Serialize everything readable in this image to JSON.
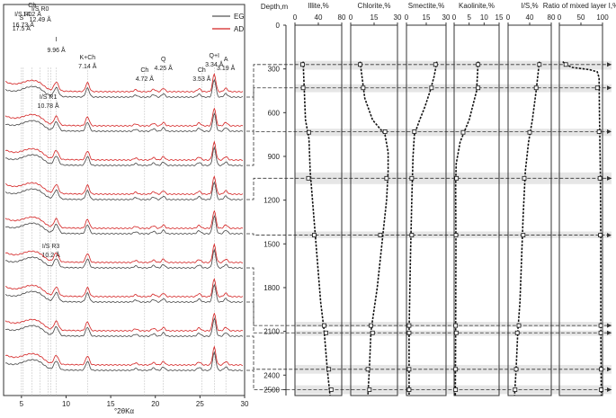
{
  "chart_data": [
    {
      "type": "line",
      "subtype": "xrd-diffractogram-stack",
      "xlabel": "°2θKα",
      "x_ticks": [
        5,
        10,
        15,
        20,
        25,
        30
      ],
      "xlim": [
        3,
        30
      ],
      "legend": [
        {
          "label": "EG",
          "color": "#555555"
        },
        {
          "label": "AD",
          "color": "#d42020"
        }
      ],
      "peak_labels": [
        {
          "text": [
            "I/S R0",
            "16.73 Å"
          ],
          "x": 5.2
        },
        {
          "text": [
            "S",
            "17.5 Å"
          ],
          "x": 5.0
        },
        {
          "text": [
            "Ch",
            "14.2 Å"
          ],
          "x": 6.2
        },
        {
          "text": [
            "I/S R0",
            "12.49 Å"
          ],
          "x": 7.1
        },
        {
          "text": [
            "I",
            "9.96 Å"
          ],
          "x": 8.9
        },
        {
          "text": [
            "K+Ch",
            "7.14 Å"
          ],
          "x": 12.4
        },
        {
          "text": [
            "Ch",
            "4.72 Å"
          ],
          "x": 18.8
        },
        {
          "text": [
            "Q",
            "4.25 Å"
          ],
          "x": 20.9
        },
        {
          "text": [
            "Ch",
            "3.53 Å"
          ],
          "x": 25.2
        },
        {
          "text": [
            "Q+I",
            "3.34 Å"
          ],
          "x": 26.6
        },
        {
          "text": [
            "A",
            "3.19 Å"
          ],
          "x": 27.9
        },
        {
          "text": [
            "I/S R1",
            "10.78 Å"
          ],
          "x": 8.0
        },
        {
          "text": [
            "I/S R3",
            "10.2 Å"
          ],
          "x": 8.3
        }
      ],
      "sample_depths_m": [
        270,
        430,
        730,
        1050,
        1440,
        2060,
        2110,
        2360,
        2500
      ]
    },
    {
      "type": "line",
      "subtype": "depth-profiles",
      "depth_label": "Depth,m",
      "depth_ticks": [
        0,
        300,
        600,
        900,
        1200,
        1500,
        1800,
        2100,
        2400,
        2500
      ],
      "depth_range": [
        0,
        2540
      ],
      "highlight_bands_m": [
        [
          245,
          305
        ],
        [
          405,
          460
        ],
        [
          710,
          760
        ],
        [
          1010,
          1090
        ],
        [
          1415,
          1460
        ],
        [
          2035,
          2070
        ],
        [
          2095,
          2130
        ],
        [
          2330,
          2390
        ],
        [
          2470,
          2530
        ]
      ],
      "panels": [
        {
          "title": "Illite,%",
          "ticks": [
            0,
            40,
            80
          ],
          "xlim": [
            0,
            80
          ],
          "trend": [
            [
              250,
              14
            ],
            [
              450,
              16
            ],
            [
              650,
              18
            ],
            [
              780,
              24
            ],
            [
              1000,
              26
            ],
            [
              1300,
              32
            ],
            [
              1600,
              38
            ],
            [
              1900,
              44
            ],
            [
              2100,
              50
            ],
            [
              2350,
              55
            ],
            [
              2540,
              60
            ]
          ],
          "points": [
            [
              270,
              13
            ],
            [
              430,
              14
            ],
            [
              735,
              24
            ],
            [
              1050,
              23
            ],
            [
              1440,
              33
            ],
            [
              2060,
              50
            ],
            [
              2110,
              53
            ],
            [
              2360,
              58
            ],
            [
              2500,
              62
            ]
          ]
        },
        {
          "title": "Chlorite,%",
          "ticks": [
            0,
            15,
            30
          ],
          "xlim": [
            0,
            30
          ],
          "trend": [
            [
              250,
              6
            ],
            [
              500,
              9
            ],
            [
              650,
              14
            ],
            [
              750,
              22
            ],
            [
              870,
              24
            ],
            [
              1000,
              24
            ],
            [
              1200,
              23
            ],
            [
              1500,
              20
            ],
            [
              1800,
              17
            ],
            [
              2100,
              13
            ],
            [
              2350,
              12
            ],
            [
              2540,
              11
            ]
          ],
          "points": [
            [
              270,
              6
            ],
            [
              430,
              8
            ],
            [
              730,
              22
            ],
            [
              1050,
              23
            ],
            [
              1440,
              19
            ],
            [
              2060,
              13
            ],
            [
              2110,
              14
            ],
            [
              2360,
              11
            ],
            [
              2500,
              12
            ]
          ]
        },
        {
          "title": "Smectite,%",
          "ticks": [
            0,
            15,
            30
          ],
          "xlim": [
            0,
            30
          ],
          "trend": [
            [
              250,
              23
            ],
            [
              300,
              22
            ],
            [
              350,
              21
            ],
            [
              450,
              18
            ],
            [
              560,
              14
            ],
            [
              650,
              10
            ],
            [
              750,
              6
            ],
            [
              900,
              5
            ],
            [
              1200,
              4
            ],
            [
              1600,
              3
            ],
            [
              2100,
              2
            ],
            [
              2540,
              2
            ]
          ],
          "points": [
            [
              270,
              22
            ],
            [
              430,
              19
            ],
            [
              730,
              6
            ],
            [
              1050,
              4
            ],
            [
              1440,
              4
            ],
            [
              2060,
              2
            ],
            [
              2110,
              2
            ],
            [
              2360,
              2
            ],
            [
              2500,
              2
            ]
          ]
        },
        {
          "title": "Kaolinite,%",
          "ticks": [
            0,
            5,
            10,
            15
          ],
          "xlim": [
            0,
            15
          ],
          "trend": [
            [
              250,
              8
            ],
            [
              450,
              7.5
            ],
            [
              650,
              5
            ],
            [
              800,
              2
            ],
            [
              950,
              0.7
            ],
            [
              1100,
              0.5
            ],
            [
              1500,
              0.6
            ],
            [
              2100,
              0.5
            ],
            [
              2540,
              0.4
            ]
          ],
          "points": [
            [
              270,
              8
            ],
            [
              430,
              8
            ],
            [
              735,
              3
            ],
            [
              1050,
              0.8
            ],
            [
              1440,
              0.6
            ],
            [
              2060,
              0.5
            ],
            [
              2110,
              0.7
            ],
            [
              2360,
              0.5
            ],
            [
              2500,
              0.5
            ]
          ]
        },
        {
          "title": "I/S,%",
          "ticks": [
            0,
            40,
            80
          ],
          "xlim": [
            0,
            80
          ],
          "trend": [
            [
              250,
              58
            ],
            [
              450,
              52
            ],
            [
              650,
              45
            ],
            [
              800,
              38
            ],
            [
              1000,
              32
            ],
            [
              1300,
              28
            ],
            [
              1600,
              25
            ],
            [
              1900,
              22
            ],
            [
              2100,
              18
            ],
            [
              2350,
              15
            ],
            [
              2540,
              12
            ]
          ],
          "points": [
            [
              270,
              58
            ],
            [
              430,
              52
            ],
            [
              735,
              40
            ],
            [
              1050,
              30
            ],
            [
              1440,
              28
            ],
            [
              2060,
              20
            ],
            [
              2110,
              17
            ],
            [
              2360,
              15
            ],
            [
              2500,
              13
            ]
          ]
        },
        {
          "title": "Ratio of mixed layer I,%",
          "ticks": [
            0,
            50,
            100
          ],
          "xlim": [
            0,
            100
          ],
          "trend": [
            [
              250,
              8
            ],
            [
              270,
              15
            ],
            [
              290,
              30
            ],
            [
              305,
              70
            ],
            [
              320,
              88
            ],
            [
              360,
              92
            ],
            [
              600,
              93
            ],
            [
              1000,
              95
            ],
            [
              1500,
              96
            ],
            [
              2100,
              96
            ],
            [
              2540,
              97
            ]
          ],
          "points": [
            [
              270,
              15
            ],
            [
              430,
              88
            ],
            [
              730,
              92
            ],
            [
              1050,
              94
            ],
            [
              1440,
              95
            ],
            [
              2060,
              96
            ],
            [
              2110,
              96
            ],
            [
              2360,
              97
            ],
            [
              2500,
              97
            ]
          ]
        }
      ]
    }
  ]
}
